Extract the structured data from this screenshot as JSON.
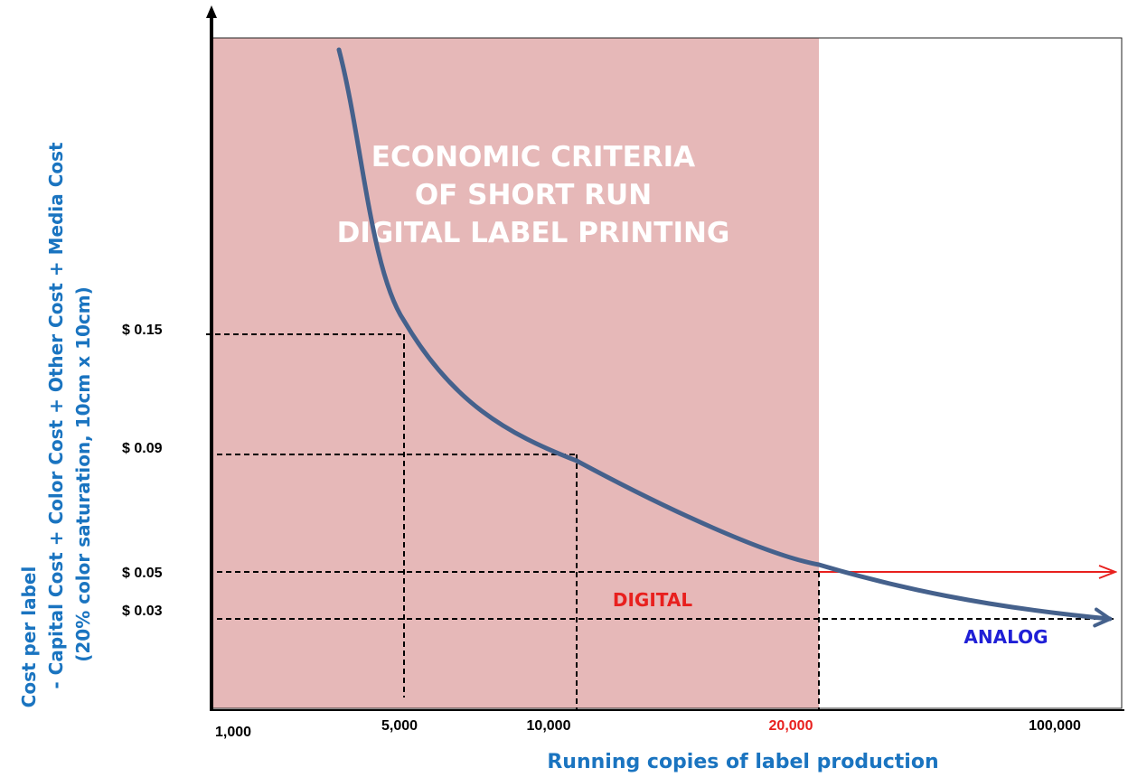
{
  "chart_data": {
    "type": "line",
    "title_lines": [
      "ECONOMIC CRITERIA",
      "OF SHORT RUN",
      "DIGITAL LABEL PRINTING"
    ],
    "xlabel": "Running copies of label production",
    "ylabel_lines": [
      "Cost per label",
      "- Capital Cost + Color Cost + Other Cost + Media Cost",
      "(20% color saturation, 10cm x 10cm)"
    ],
    "x_ticks": [
      "1,000",
      "5,000",
      "10,000",
      "20,000",
      "100,000"
    ],
    "y_ticks": [
      "$ 0.15",
      "$ 0.09",
      "$ 0.05",
      "$ 0.03"
    ],
    "y_values": [
      0.15,
      0.09,
      0.05,
      0.03
    ],
    "highlighted_region": {
      "from": "1,000",
      "to": "20,000",
      "color": "#e6b8b8"
    },
    "series": [
      {
        "name": "ANALOG",
        "color": "#45618c",
        "label_color": "#1f1fd6",
        "points": [
          {
            "x": 3000,
            "y": 0.45
          },
          {
            "x": 5000,
            "y": 0.15
          },
          {
            "x": 10000,
            "y": 0.09
          },
          {
            "x": 20000,
            "y": 0.05
          },
          {
            "x": 100000,
            "y": 0.03
          }
        ]
      },
      {
        "name": "DIGITAL",
        "color": "#e8201e",
        "label_color": "#e8201e",
        "y_constant": 0.05
      }
    ],
    "guides": [
      {
        "x": "5,000",
        "y": "$ 0.15"
      },
      {
        "x": "10,000",
        "y": "$ 0.09"
      },
      {
        "x": "20,000",
        "y": "$ 0.05"
      },
      {
        "x": "100,000",
        "y": "$ 0.03"
      }
    ],
    "colors": {
      "axis_label": "#1a74c0",
      "tick": "#000000",
      "highlight_tick": "#e8201e"
    }
  }
}
